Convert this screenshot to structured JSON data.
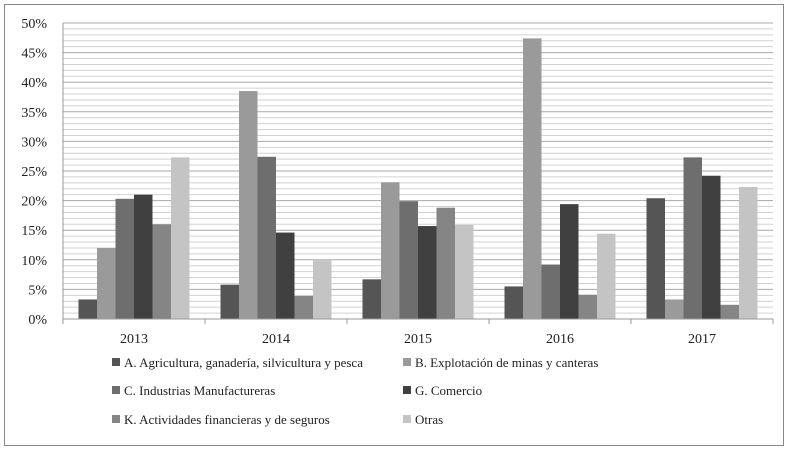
{
  "chart_data": {
    "type": "bar",
    "categories": [
      "2013",
      "2014",
      "2015",
      "2016",
      "2017"
    ],
    "ylim": [
      0,
      50
    ],
    "ytick_labels": [
      "0%",
      "5%",
      "10%",
      "15%",
      "20%",
      "25%",
      "30%",
      "35%",
      "40%",
      "45%",
      "50%"
    ],
    "y_unit": "%",
    "grid": true,
    "legend_position": "bottom",
    "series": [
      {
        "name": "A. Agricultura, ganadería, silvicultura y pesca",
        "color": "#555555",
        "values": [
          3.3,
          5.8,
          6.7,
          5.5,
          20.4
        ]
      },
      {
        "name": "B. Explotación de minas y canteras",
        "color": "#9a9a9a",
        "values": [
          12.0,
          38.5,
          23.1,
          47.4,
          3.3
        ]
      },
      {
        "name": "C. Industrias Manufactureras",
        "color": "#6e6e6e",
        "values": [
          20.3,
          27.4,
          19.9,
          9.2,
          27.3
        ]
      },
      {
        "name": "G. Comercio",
        "color": "#404040",
        "values": [
          21.0,
          14.6,
          15.7,
          19.4,
          24.2
        ]
      },
      {
        "name": "K. Actividades financieras y de seguros",
        "color": "#858585",
        "values": [
          16.0,
          3.9,
          18.8,
          4.1,
          2.4
        ]
      },
      {
        "name": "Otras",
        "color": "#c4c4c4",
        "values": [
          27.3,
          9.9,
          15.9,
          14.4,
          22.3
        ]
      }
    ]
  }
}
